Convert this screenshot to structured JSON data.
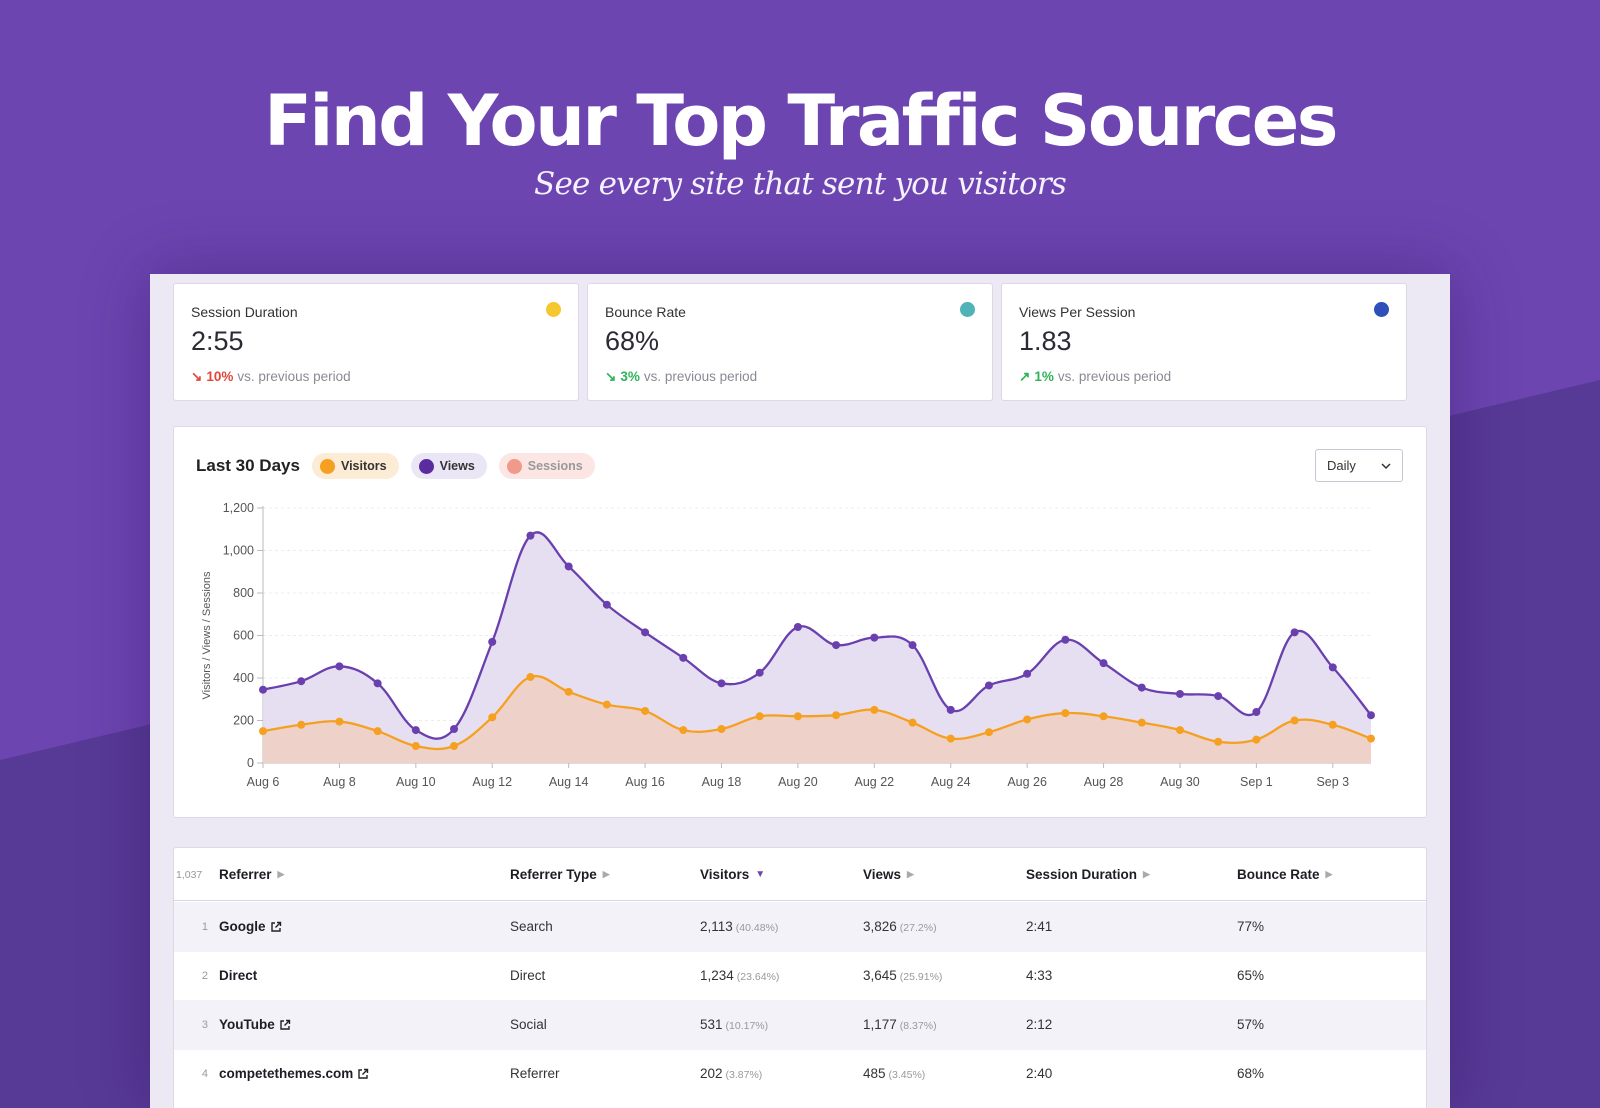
{
  "hero": {
    "title": "Find Your Top Traffic Sources",
    "subtitle": "See every site that sent you visitors"
  },
  "stats": [
    {
      "label": "Session Duration",
      "value": "2:55",
      "change": "10%",
      "direction": "down",
      "suffix": "vs. previous period",
      "dot_color": "#f5c830"
    },
    {
      "label": "Bounce Rate",
      "value": "68%",
      "change": "3%",
      "direction": "down",
      "suffix": "vs. previous period",
      "dot_color": "#4fb3b8"
    },
    {
      "label": "Views Per Session",
      "value": "1.83",
      "change": "1%",
      "direction": "up",
      "suffix": "vs. previous period",
      "dot_color": "#2f50b8"
    }
  ],
  "chart_header": {
    "title": "Last 30 Days",
    "legend": [
      {
        "name": "Visitors",
        "color": "#f5a020",
        "bg": "#fdecd5",
        "text_color": "#333"
      },
      {
        "name": "Views",
        "color": "#5b2c9e",
        "bg": "#ebe6f6",
        "text_color": "#333"
      },
      {
        "name": "Sessions",
        "color": "#f19a8c",
        "bg": "#fbe6e3",
        "text_color": "#999"
      }
    ],
    "interval_select": "Daily"
  },
  "chart_data": {
    "type": "area",
    "ylabel": "Visitors / Views / Sessions",
    "ylim": [
      0,
      1200
    ],
    "yticks": [
      0,
      200,
      400,
      600,
      800,
      1000,
      1200
    ],
    "ytick_labels": [
      "0",
      "200",
      "400",
      "600",
      "800",
      "1,000",
      "1,200"
    ],
    "x": [
      "Aug 6",
      "Aug 7",
      "Aug 8",
      "Aug 9",
      "Aug 10",
      "Aug 11",
      "Aug 12",
      "Aug 13",
      "Aug 14",
      "Aug 15",
      "Aug 16",
      "Aug 17",
      "Aug 18",
      "Aug 19",
      "Aug 20",
      "Aug 21",
      "Aug 22",
      "Aug 23",
      "Aug 24",
      "Aug 25",
      "Aug 26",
      "Aug 27",
      "Aug 28",
      "Aug 29",
      "Aug 30",
      "Aug 31",
      "Sep 1",
      "Sep 2",
      "Sep 3",
      "Sep 4"
    ],
    "xtick_labels": [
      "Aug 6",
      "Aug 8",
      "Aug 10",
      "Aug 12",
      "Aug 14",
      "Aug 16",
      "Aug 18",
      "Aug 20",
      "Aug 22",
      "Aug 24",
      "Aug 26",
      "Aug 28",
      "Aug 30",
      "Sep 1",
      "Sep 3"
    ],
    "grid": true,
    "series": [
      {
        "name": "Views",
        "color": "#6a3fae",
        "fill": "#e3dbf1",
        "values": [
          345,
          385,
          455,
          375,
          155,
          160,
          570,
          1070,
          925,
          745,
          615,
          495,
          375,
          425,
          640,
          555,
          590,
          555,
          250,
          365,
          420,
          580,
          470,
          355,
          325,
          315,
          240,
          615,
          450,
          225
        ]
      },
      {
        "name": "Visitors",
        "color": "#f5a020",
        "fill": "#eed0c4",
        "values": [
          150,
          180,
          195,
          150,
          80,
          80,
          215,
          405,
          335,
          275,
          245,
          155,
          160,
          220,
          220,
          225,
          250,
          190,
          115,
          145,
          205,
          235,
          220,
          190,
          155,
          100,
          110,
          200,
          180,
          115
        ]
      }
    ]
  },
  "table": {
    "total": "1,037",
    "columns": [
      {
        "label": "Referrer",
        "sorted": false
      },
      {
        "label": "Referrer Type",
        "sorted": false
      },
      {
        "label": "Visitors",
        "sorted": true
      },
      {
        "label": "Views",
        "sorted": false
      },
      {
        "label": "Session Duration",
        "sorted": false
      },
      {
        "label": "Bounce Rate",
        "sorted": false
      }
    ],
    "rows": [
      {
        "num": "1",
        "referrer": "Google",
        "external": true,
        "type": "Search",
        "visitors": "2,113",
        "visitors_pct": "(40.48%)",
        "views": "3,826",
        "views_pct": "(27.2%)",
        "duration": "2:41",
        "bounce": "77%"
      },
      {
        "num": "2",
        "referrer": "Direct",
        "external": false,
        "type": "Direct",
        "visitors": "1,234",
        "visitors_pct": "(23.64%)",
        "views": "3,645",
        "views_pct": "(25.91%)",
        "duration": "4:33",
        "bounce": "65%"
      },
      {
        "num": "3",
        "referrer": "YouTube",
        "external": true,
        "type": "Social",
        "visitors": "531",
        "visitors_pct": "(10.17%)",
        "views": "1,177",
        "views_pct": "(8.37%)",
        "duration": "2:12",
        "bounce": "57%"
      },
      {
        "num": "4",
        "referrer": "competethemes.com",
        "external": true,
        "type": "Referrer",
        "visitors": "202",
        "visitors_pct": "(3.87%)",
        "views": "485",
        "views_pct": "(3.45%)",
        "duration": "2:40",
        "bounce": "68%"
      }
    ]
  }
}
